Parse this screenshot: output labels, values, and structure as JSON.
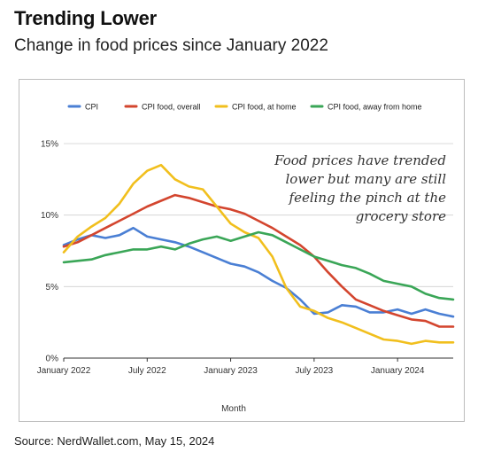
{
  "header": {
    "title": "Trending Lower",
    "subtitle": "Change in food prices since January 2022"
  },
  "footer": {
    "source": "Source: NerdWallet.com, May 15, 2024"
  },
  "chart_data": {
    "type": "line",
    "xlabel": "Month",
    "ylabel": "",
    "ylim": [
      0,
      15
    ],
    "yticks": [
      0,
      5,
      10,
      15
    ],
    "ytick_labels": [
      "0%",
      "5%",
      "10%",
      "15%"
    ],
    "x_start": "2022-01",
    "x_end": "2024-05",
    "xticks": [
      "2022-01",
      "2022-07",
      "2023-01",
      "2023-07",
      "2024-01"
    ],
    "xtick_labels": [
      "January 2022",
      "July 2022",
      "January 2023",
      "July 2023",
      "January 2024"
    ],
    "grid": "horizontal",
    "legend_position": "top",
    "annotation": [
      "Food prices have trended",
      "lower but many are still",
      "feeling the pinch at the",
      "grocery store"
    ],
    "x": [
      "2022-01",
      "2022-02",
      "2022-03",
      "2022-04",
      "2022-05",
      "2022-06",
      "2022-07",
      "2022-08",
      "2022-09",
      "2022-10",
      "2022-11",
      "2022-12",
      "2023-01",
      "2023-02",
      "2023-03",
      "2023-04",
      "2023-05",
      "2023-06",
      "2023-07",
      "2023-08",
      "2023-09",
      "2023-10",
      "2023-11",
      "2023-12",
      "2024-01",
      "2024-02",
      "2024-03",
      "2024-04",
      "2024-05"
    ],
    "series": [
      {
        "name": "CPI",
        "color": "#4a7fd4",
        "values": [
          7.9,
          8.3,
          8.6,
          8.4,
          8.6,
          9.1,
          8.5,
          8.3,
          8.1,
          7.8,
          7.4,
          7.0,
          6.6,
          6.4,
          6.0,
          5.4,
          4.9,
          4.1,
          3.1,
          3.2,
          3.7,
          3.6,
          3.2,
          3.2,
          3.4,
          3.1,
          3.4,
          3.1,
          2.9
        ]
      },
      {
        "name": "CPI food, overall",
        "color": "#d3452e",
        "values": [
          7.8,
          8.1,
          8.6,
          9.1,
          9.6,
          10.1,
          10.6,
          11.0,
          11.4,
          11.2,
          10.9,
          10.6,
          10.4,
          10.1,
          9.6,
          9.1,
          8.5,
          7.9,
          7.1,
          6.0,
          5.0,
          4.1,
          3.7,
          3.3,
          3.0,
          2.7,
          2.6,
          2.2,
          2.2
        ]
      },
      {
        "name": "CPI food, at home",
        "color": "#f1bf1d",
        "values": [
          7.4,
          8.5,
          9.2,
          9.8,
          10.8,
          12.2,
          13.1,
          13.5,
          12.5,
          12.0,
          11.8,
          10.6,
          9.4,
          8.8,
          8.4,
          7.1,
          4.9,
          3.6,
          3.3,
          2.8,
          2.5,
          2.1,
          1.7,
          1.3,
          1.2,
          1.0,
          1.2,
          1.1,
          1.1
        ]
      },
      {
        "name": "CPI food, away from home",
        "color": "#3aa657",
        "values": [
          6.7,
          6.8,
          6.9,
          7.2,
          7.4,
          7.6,
          7.6,
          7.8,
          7.6,
          8.0,
          8.3,
          8.5,
          8.2,
          8.5,
          8.8,
          8.6,
          8.1,
          7.6,
          7.1,
          6.8,
          6.5,
          6.3,
          5.9,
          5.4,
          5.2,
          5.0,
          4.5,
          4.2,
          4.1
        ]
      }
    ]
  }
}
